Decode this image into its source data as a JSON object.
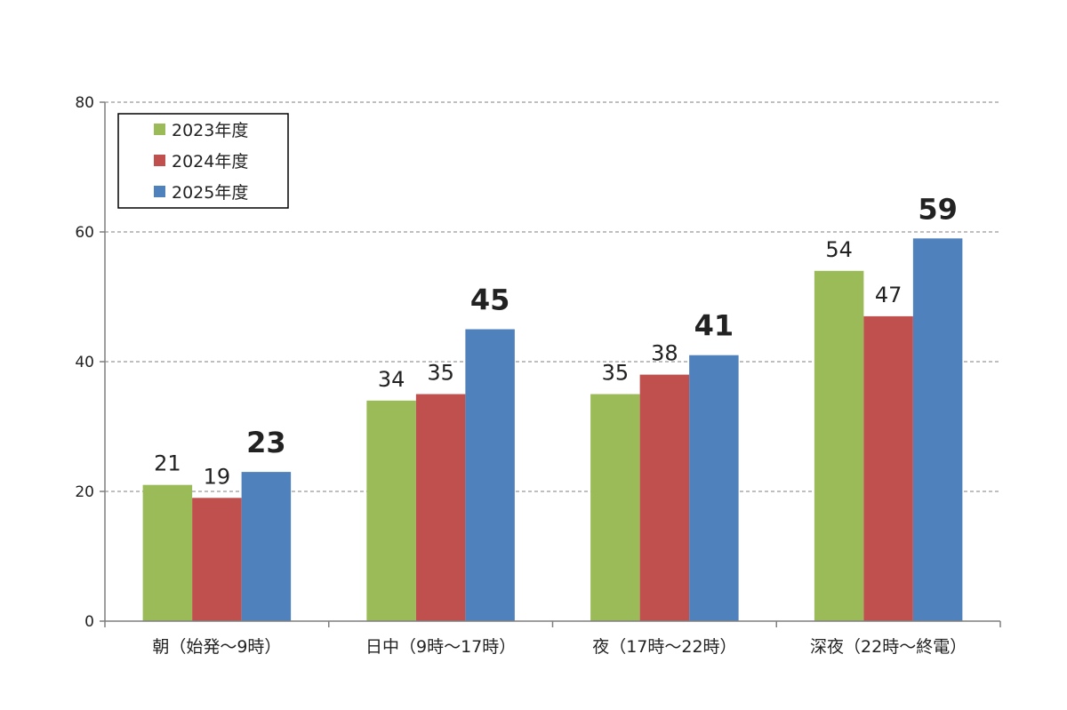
{
  "chart_data": {
    "type": "bar",
    "title": "",
    "xlabel": "",
    "ylabel": "",
    "categories": [
      "朝（始発～9時）",
      "日中（9時～17時）",
      "夜（17時～22時）",
      "深夜（22時～終電）"
    ],
    "series": [
      {
        "name": "2023年度",
        "values": [
          21,
          34,
          35,
          54
        ],
        "color": "#9bbb59"
      },
      {
        "name": "2024年度",
        "values": [
          19,
          35,
          38,
          47
        ],
        "color": "#c0504d"
      },
      {
        "name": "2025年度",
        "values": [
          23,
          45,
          41,
          59
        ],
        "color": "#4f81bd"
      }
    ],
    "ylim": [
      0,
      80
    ],
    "yticks": [
      0,
      20,
      40,
      60,
      80
    ],
    "grid": true,
    "legend_position": "top-left",
    "bold_series": "2025年度"
  }
}
